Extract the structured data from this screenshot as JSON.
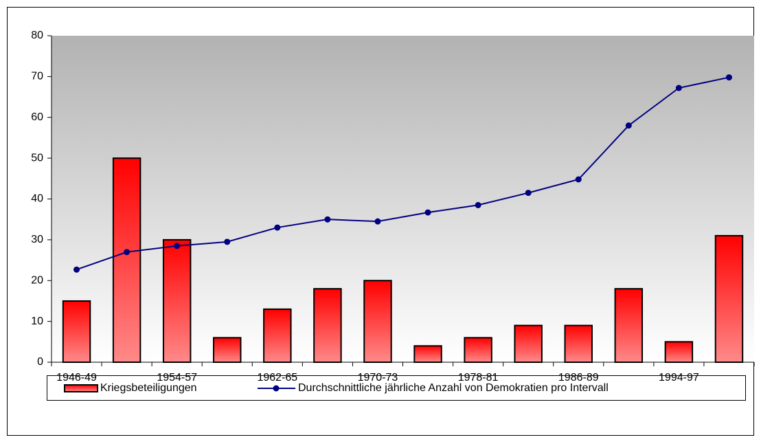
{
  "chart_data": {
    "type": "bar_line",
    "categories": [
      "1946-49",
      null,
      "1954-57",
      null,
      "1962-65",
      null,
      "1970-73",
      null,
      "1978-81",
      null,
      "1986-89",
      null,
      "1994-97",
      null
    ],
    "series": [
      {
        "name": "Kriegsbeteiligungen",
        "type": "bar",
        "color": "#ff0000",
        "values": [
          15,
          50,
          30,
          6,
          13,
          18,
          20,
          4,
          6,
          9,
          9,
          18,
          5,
          31
        ]
      },
      {
        "name": "Durchschnittliche jährliche Anzahl von Demokratien pro Intervall",
        "type": "line",
        "color": "#000080",
        "values": [
          22.7,
          27,
          28.5,
          29.5,
          33,
          35,
          34.5,
          36.7,
          38.5,
          41.5,
          44.8,
          58,
          67.2,
          69.8
        ]
      }
    ],
    "ylim": [
      0,
      80
    ],
    "yticks": [
      0,
      10,
      20,
      30,
      40,
      50,
      60,
      70,
      80
    ],
    "legend": "bottom"
  }
}
